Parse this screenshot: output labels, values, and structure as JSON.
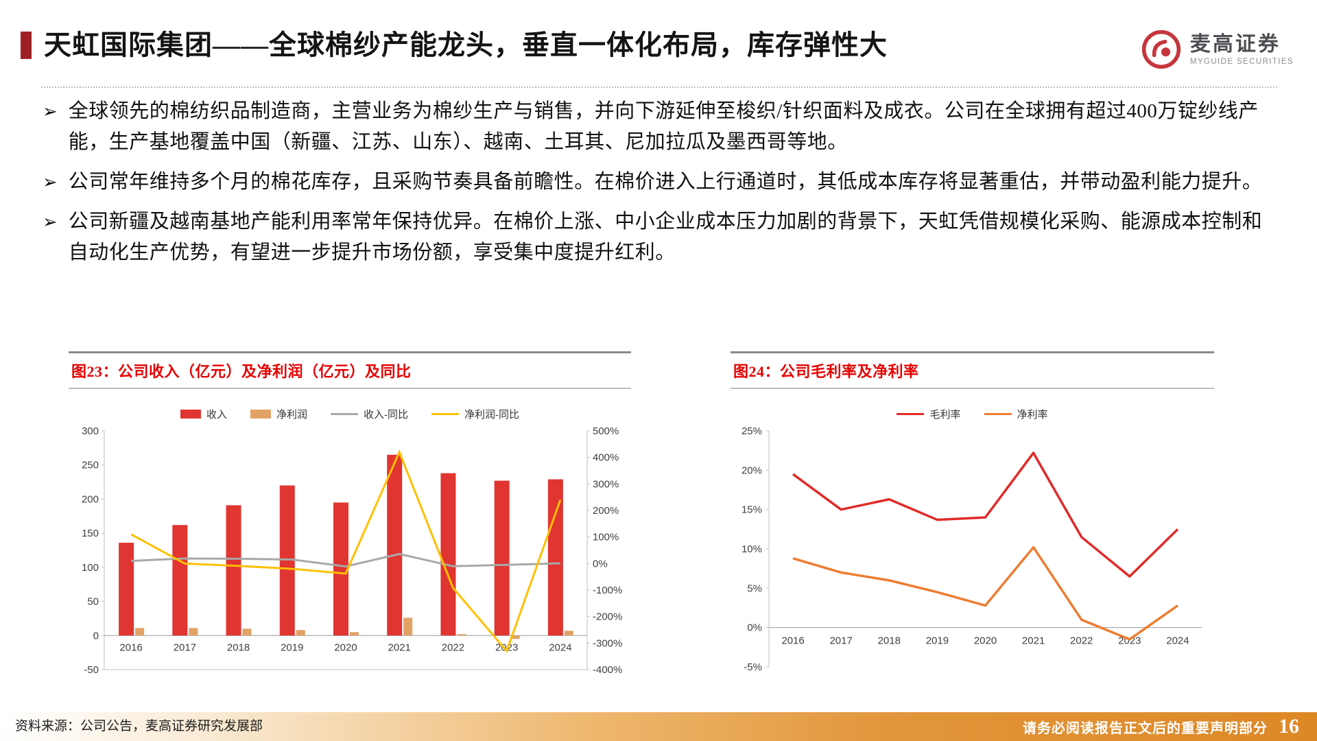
{
  "header": {
    "title": "天虹国际集团——全球棉纱产能龙头，垂直一体化布局，库存弹性大",
    "logo_cn": "麦高证券",
    "logo_en": "MYGUIDE SECURITIES"
  },
  "bullet_marker": "➢",
  "bullets": [
    "全球领先的棉纺织品制造商，主营业务为棉纱生产与销售，并向下游延伸至梭织/针织面料及成衣。公司在全球拥有超过400万锭纱线产能，生产基地覆盖中国（新疆、江苏、山东）、越南、土耳其、尼加拉瓜及墨西哥等地。",
    "公司常年维持多个月的棉花库存，且采购节奏具备前瞻性。在棉价进入上行通道时，其低成本库存将显著重估，并带动盈利能力提升。",
    "公司新疆及越南基地产能利用率常年保持优异。在棉价上涨、中小企业成本压力加剧的背景下，天虹凭借规模化采购、能源成本控制和自动化生产优势，有望进一步提升市场份额，享受集中度提升红利。"
  ],
  "footer": {
    "source": "资料来源：公司公告，麦高证券研究发展部",
    "disclaimer": "请务必阅读报告正文后的重要声明部分",
    "page_number": "16"
  },
  "colors": {
    "accent_red": "#a02125",
    "chart_title_red": "#e60000",
    "footer_orange": "#dd8826",
    "logo_red": "#c5363c"
  },
  "chart_data": [
    {
      "type": "bar",
      "title": "图23：公司收入（亿元）及净利润（亿元）及同比",
      "categories": [
        "2016",
        "2017",
        "2018",
        "2019",
        "2020",
        "2021",
        "2022",
        "2023",
        "2024"
      ],
      "bar_series": [
        {
          "name": "收入",
          "color": "#e03531",
          "values": [
            136,
            162,
            191,
            220,
            195,
            265,
            238,
            227,
            229
          ]
        },
        {
          "name": "净利润",
          "color": "#e2a266",
          "values": [
            11,
            11,
            10,
            8,
            5,
            26,
            2,
            -5,
            7
          ]
        }
      ],
      "line_series": [
        {
          "name": "收入-同比",
          "color": "#a8a8a8",
          "axis": "right",
          "values": [
            10,
            19,
            18,
            15,
            -11,
            36,
            -10,
            -5,
            1
          ]
        },
        {
          "name": "净利润-同比",
          "color": "#ffc000",
          "axis": "right",
          "values": [
            110,
            0,
            -9,
            -20,
            -38,
            420,
            -92,
            -330,
            240
          ]
        }
      ],
      "left_axis": {
        "min": -50,
        "max": 300,
        "step": 50
      },
      "right_axis": {
        "min": -400,
        "max": 500,
        "step": 100,
        "suffix": "%"
      },
      "legend_position": "top",
      "grid": false
    },
    {
      "type": "line",
      "title": "图24：公司毛利率及净利率",
      "categories": [
        "2016",
        "2017",
        "2018",
        "2019",
        "2020",
        "2021",
        "2022",
        "2023",
        "2024"
      ],
      "series": [
        {
          "name": "毛利率",
          "color": "#e02b28",
          "values": [
            19.5,
            15.0,
            16.3,
            13.7,
            14.0,
            22.2,
            11.5,
            6.5,
            12.5
          ]
        },
        {
          "name": "净利率",
          "color": "#ed7d31",
          "values": [
            8.8,
            7.0,
            6.0,
            4.5,
            2.8,
            10.2,
            1.0,
            -1.5,
            2.8
          ]
        }
      ],
      "y_axis": {
        "min": -5,
        "max": 25,
        "step": 5,
        "suffix": "%"
      },
      "legend_position": "top",
      "grid": false
    }
  ]
}
